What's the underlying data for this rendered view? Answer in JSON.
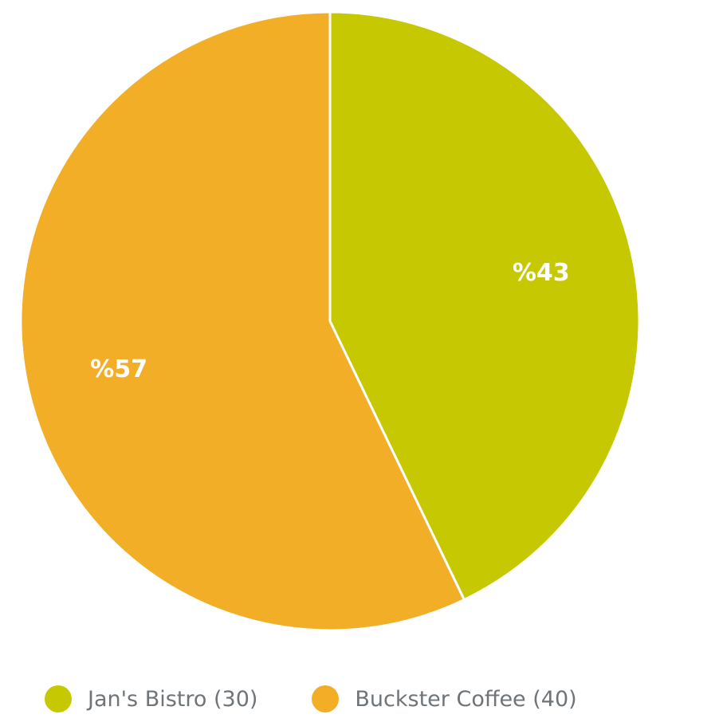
{
  "chart_data": {
    "type": "pie",
    "categories": [
      "Jan's Bistro",
      "Buckster Coffee"
    ],
    "values": [
      30,
      40
    ],
    "slice_labels": [
      "%43",
      "%57"
    ],
    "colors": [
      "#c6c802",
      "#f3ae27"
    ],
    "start_angle_deg": 0,
    "direction": "clockwise",
    "legend": {
      "placement": "bottom",
      "items": [
        {
          "label": "Jan's Bistro (30)",
          "color": "#c6c802"
        },
        {
          "label": "Buckster Coffee (40)",
          "color": "#f3ae27"
        }
      ]
    },
    "title": "",
    "xlabel": "",
    "ylabel": ""
  }
}
